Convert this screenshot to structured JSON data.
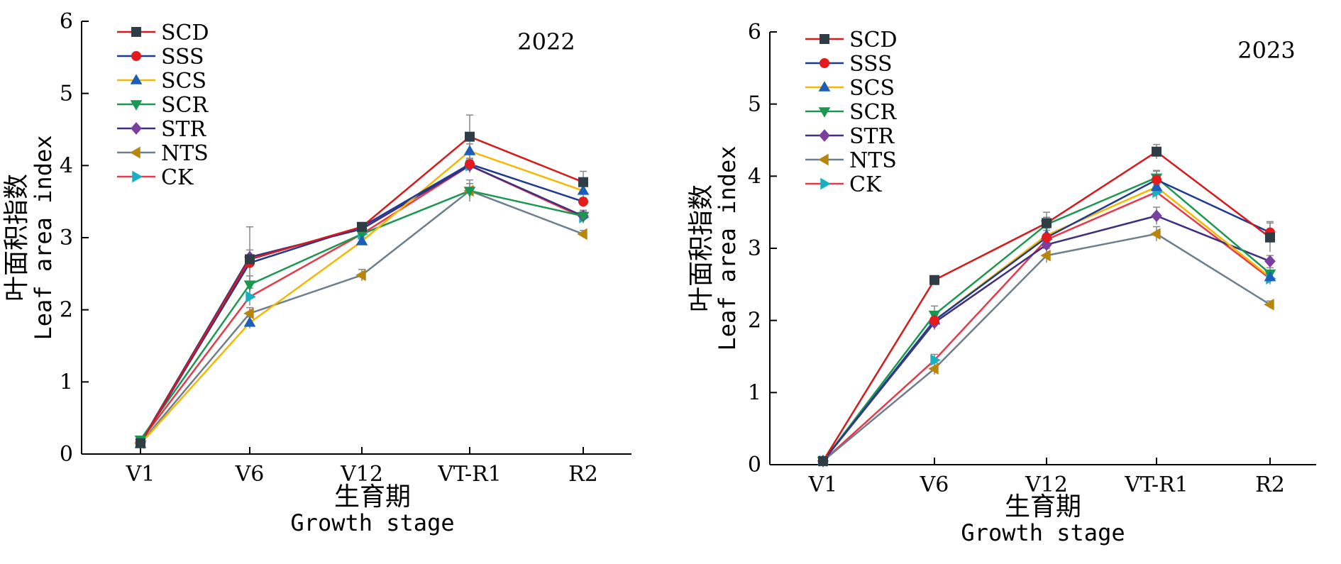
{
  "chart_data": [
    {
      "type": "line",
      "categories": [
        "V1",
        "V6",
        "V12",
        "VT-R1",
        "R2"
      ],
      "xlabel_cn": "生育期",
      "xlabel_en": "Growth stage",
      "ylabel_cn": "叶面积指数",
      "ylabel_en": "Leaf area index",
      "year_label": "2022",
      "ylim": [
        0,
        6
      ],
      "yticks": [
        "0",
        "1",
        "2",
        "3",
        "4",
        "5",
        "6"
      ],
      "legend_position": "top-left",
      "series": [
        {
          "name": "SCD",
          "values": [
            0.15,
            2.7,
            3.15,
            4.4,
            3.77
          ],
          "color": "#d7191c",
          "marker_color": "#2f3e46",
          "marker": "square"
        },
        {
          "name": "SSS",
          "values": [
            0.15,
            2.65,
            3.15,
            4.02,
            3.5
          ],
          "color": "#1f3a93",
          "marker_color": "#e41a1c",
          "marker": "circle"
        },
        {
          "name": "SCS",
          "values": [
            0.14,
            1.82,
            2.95,
            4.2,
            3.65
          ],
          "color": "#f5b800",
          "marker_color": "#1c5fb8",
          "marker": "triangle-up"
        },
        {
          "name": "SCR",
          "values": [
            0.2,
            2.35,
            3.05,
            3.65,
            3.3
          ],
          "color": "#1a9850",
          "marker_color": "#1a9850",
          "marker": "triangle-down"
        },
        {
          "name": "STR",
          "values": [
            0.16,
            2.73,
            3.12,
            4.0,
            3.3
          ],
          "color": "#3f2f7f",
          "marker_color": "#7b3fa0",
          "marker": "diamond"
        },
        {
          "name": "NTS",
          "values": [
            0.15,
            1.95,
            2.48,
            3.65,
            3.05
          ],
          "color": "#6d7f8c",
          "marker_color": "#b8860b",
          "marker": "triangle-left"
        },
        {
          "name": "CK",
          "values": [
            0.18,
            2.18,
            3.05,
            4.0,
            3.28
          ],
          "color": "#e8394a",
          "marker_color": "#17b0c0",
          "marker": "triangle-right"
        }
      ],
      "error_bars": {
        "SCD": [
          0.05,
          0.45,
          0.05,
          0.3,
          0.15
        ],
        "SSS": [
          0.03,
          0.1,
          0.05,
          0.08,
          0.05
        ],
        "SCS": [
          0.03,
          0.08,
          0.05,
          0.1,
          0.08
        ],
        "SCR": [
          0.03,
          0.12,
          0.05,
          0.15,
          0.08
        ],
        "STR": [
          0.03,
          0.1,
          0.05,
          0.1,
          0.08
        ],
        "NTS": [
          0.03,
          0.08,
          0.08,
          0.1,
          0.05
        ],
        "CK": [
          0.03,
          0.12,
          0.05,
          0.08,
          0.08
        ]
      }
    },
    {
      "type": "line",
      "categories": [
        "V1",
        "V6",
        "V12",
        "VT-R1",
        "R2"
      ],
      "xlabel_cn": "生育期",
      "xlabel_en": "Growth stage",
      "ylabel_cn": "叶面积指数",
      "ylabel_en": "Leaf area index",
      "year_label": "2023",
      "ylim": [
        0,
        6
      ],
      "yticks": [
        "0",
        "1",
        "2",
        "3",
        "4",
        "5",
        "6"
      ],
      "legend_position": "top-left",
      "series": [
        {
          "name": "SCD",
          "values": [
            0.05,
            2.56,
            3.35,
            4.34,
            3.15
          ],
          "color": "#d7191c",
          "marker_color": "#2f3e46",
          "marker": "square"
        },
        {
          "name": "SSS",
          "values": [
            0.05,
            2.0,
            3.15,
            3.95,
            3.22
          ],
          "color": "#1f3a93",
          "marker_color": "#e41a1c",
          "marker": "circle"
        },
        {
          "name": "SCS",
          "values": [
            0.05,
            2.0,
            3.18,
            3.85,
            2.6
          ],
          "color": "#f5b800",
          "marker_color": "#1c5fb8",
          "marker": "triangle-up"
        },
        {
          "name": "SCR",
          "values": [
            0.05,
            2.08,
            3.33,
            3.98,
            2.65
          ],
          "color": "#1a9850",
          "marker_color": "#1a9850",
          "marker": "triangle-down"
        },
        {
          "name": "STR",
          "values": [
            0.05,
            1.97,
            3.05,
            3.45,
            2.82
          ],
          "color": "#3f2f7f",
          "marker_color": "#7b3fa0",
          "marker": "diamond"
        },
        {
          "name": "NTS",
          "values": [
            0.05,
            1.33,
            2.9,
            3.2,
            2.22
          ],
          "color": "#6d7f8c",
          "marker_color": "#b8860b",
          "marker": "triangle-left"
        },
        {
          "name": "CK",
          "values": [
            0.05,
            1.45,
            3.12,
            3.78,
            2.58
          ],
          "color": "#e8394a",
          "marker_color": "#17b0c0",
          "marker": "triangle-right"
        }
      ],
      "error_bars": {
        "SCD": [
          0.02,
          0.05,
          0.15,
          0.1,
          0.2
        ],
        "SSS": [
          0.02,
          0.1,
          0.1,
          0.12,
          0.15
        ],
        "SCS": [
          0.02,
          0.1,
          0.1,
          0.1,
          0.08
        ],
        "SCR": [
          0.02,
          0.12,
          0.1,
          0.1,
          0.08
        ],
        "STR": [
          0.02,
          0.1,
          0.08,
          0.12,
          0.08
        ],
        "NTS": [
          0.02,
          0.08,
          0.1,
          0.1,
          0.05
        ],
        "CK": [
          0.02,
          0.08,
          0.08,
          0.1,
          0.08
        ]
      }
    }
  ]
}
